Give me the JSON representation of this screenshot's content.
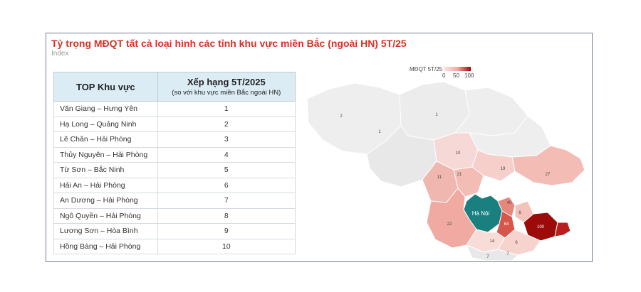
{
  "header": {
    "title": "Tỷ trọng MĐQT tất cả loại hình các tỉnh khu vực miền Bắc (ngoài HN) 5T/25",
    "subtitle": "Index"
  },
  "table": {
    "col1": "TOP Khu vực",
    "col2": "Xếp hạng 5T/2025",
    "col2_sub": "(so với khu vực miền Bắc ngoài HN)",
    "rows": [
      {
        "area": "Văn Giang – Hưng Yên",
        "rank": "1"
      },
      {
        "area": "Hạ Long – Quảng Ninh",
        "rank": "2"
      },
      {
        "area": "Lê Chân – Hải Phòng",
        "rank": "3"
      },
      {
        "area": "Thủy Nguyên – Hải Phòng",
        "rank": "4"
      },
      {
        "area": "Từ Sơn – Bắc Ninh",
        "rank": "5"
      },
      {
        "area": "Hải An – Hải Phòng",
        "rank": "6"
      },
      {
        "area": "An Dương – Hải Phòng",
        "rank": "7"
      },
      {
        "area": "Ngô Quyền – Hải Phòng",
        "rank": "8"
      },
      {
        "area": "Lương Sơn – Hòa Bình",
        "rank": "9"
      },
      {
        "area": "Hồng Bàng – Hải Phòng",
        "rank": "10"
      }
    ]
  },
  "chart_data": {
    "type": "heatmap",
    "map_type": "choropleth",
    "legend": {
      "title": "MĐQT 5T/25",
      "ticks": [
        "0",
        "50",
        "100"
      ],
      "min": 0,
      "max": 100,
      "color_low": "#fbe7e5",
      "color_high": "#9c0a0a"
    },
    "highlight": {
      "name": "Hà Nội",
      "color": "#1a7f7f"
    },
    "region_values": [
      "2",
      "1",
      "1",
      "10",
      "11",
      "21",
      "40",
      "19",
      "27",
      "6",
      "64",
      "100",
      "22",
      "14",
      "6",
      "7",
      "7"
    ]
  }
}
